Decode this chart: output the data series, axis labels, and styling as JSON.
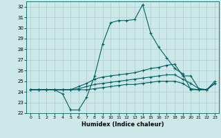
{
  "xlabel": "Humidex (Indice chaleur)",
  "xlim": [
    -0.5,
    23.5
  ],
  "ylim": [
    22,
    32.5
  ],
  "yticks": [
    22,
    23,
    24,
    25,
    26,
    27,
    28,
    29,
    30,
    31,
    32
  ],
  "xticks": [
    0,
    1,
    2,
    3,
    4,
    5,
    6,
    7,
    8,
    9,
    10,
    11,
    12,
    13,
    14,
    15,
    16,
    17,
    18,
    19,
    20,
    21,
    22,
    23
  ],
  "bg_color": "#cce8e8",
  "grid_color": "#aacccc",
  "line_color": "#006060",
  "series": [
    [
      24.2,
      24.2,
      24.2,
      24.2,
      23.8,
      22.3,
      22.3,
      23.5,
      25.5,
      28.5,
      30.5,
      30.7,
      30.7,
      30.8,
      32.2,
      29.5,
      28.2,
      27.2,
      26.2,
      25.7,
      24.2,
      24.2,
      24.2,
      24.8
    ],
    [
      24.2,
      24.2,
      24.2,
      24.2,
      24.2,
      24.2,
      24.5,
      24.8,
      25.2,
      25.4,
      25.5,
      25.6,
      25.7,
      25.8,
      26.0,
      26.2,
      26.3,
      26.5,
      26.6,
      25.5,
      25.5,
      24.3,
      24.2,
      24.8
    ],
    [
      24.2,
      24.2,
      24.2,
      24.2,
      24.2,
      24.2,
      24.3,
      24.5,
      24.7,
      24.8,
      24.9,
      25.0,
      25.1,
      25.2,
      25.3,
      25.4,
      25.5,
      25.6,
      25.6,
      25.2,
      24.8,
      24.3,
      24.2,
      25.0
    ],
    [
      24.2,
      24.2,
      24.2,
      24.2,
      24.2,
      24.2,
      24.2,
      24.2,
      24.3,
      24.4,
      24.5,
      24.6,
      24.7,
      24.7,
      24.8,
      24.9,
      25.0,
      25.0,
      25.0,
      24.8,
      24.3,
      24.2,
      24.2,
      24.8
    ]
  ]
}
